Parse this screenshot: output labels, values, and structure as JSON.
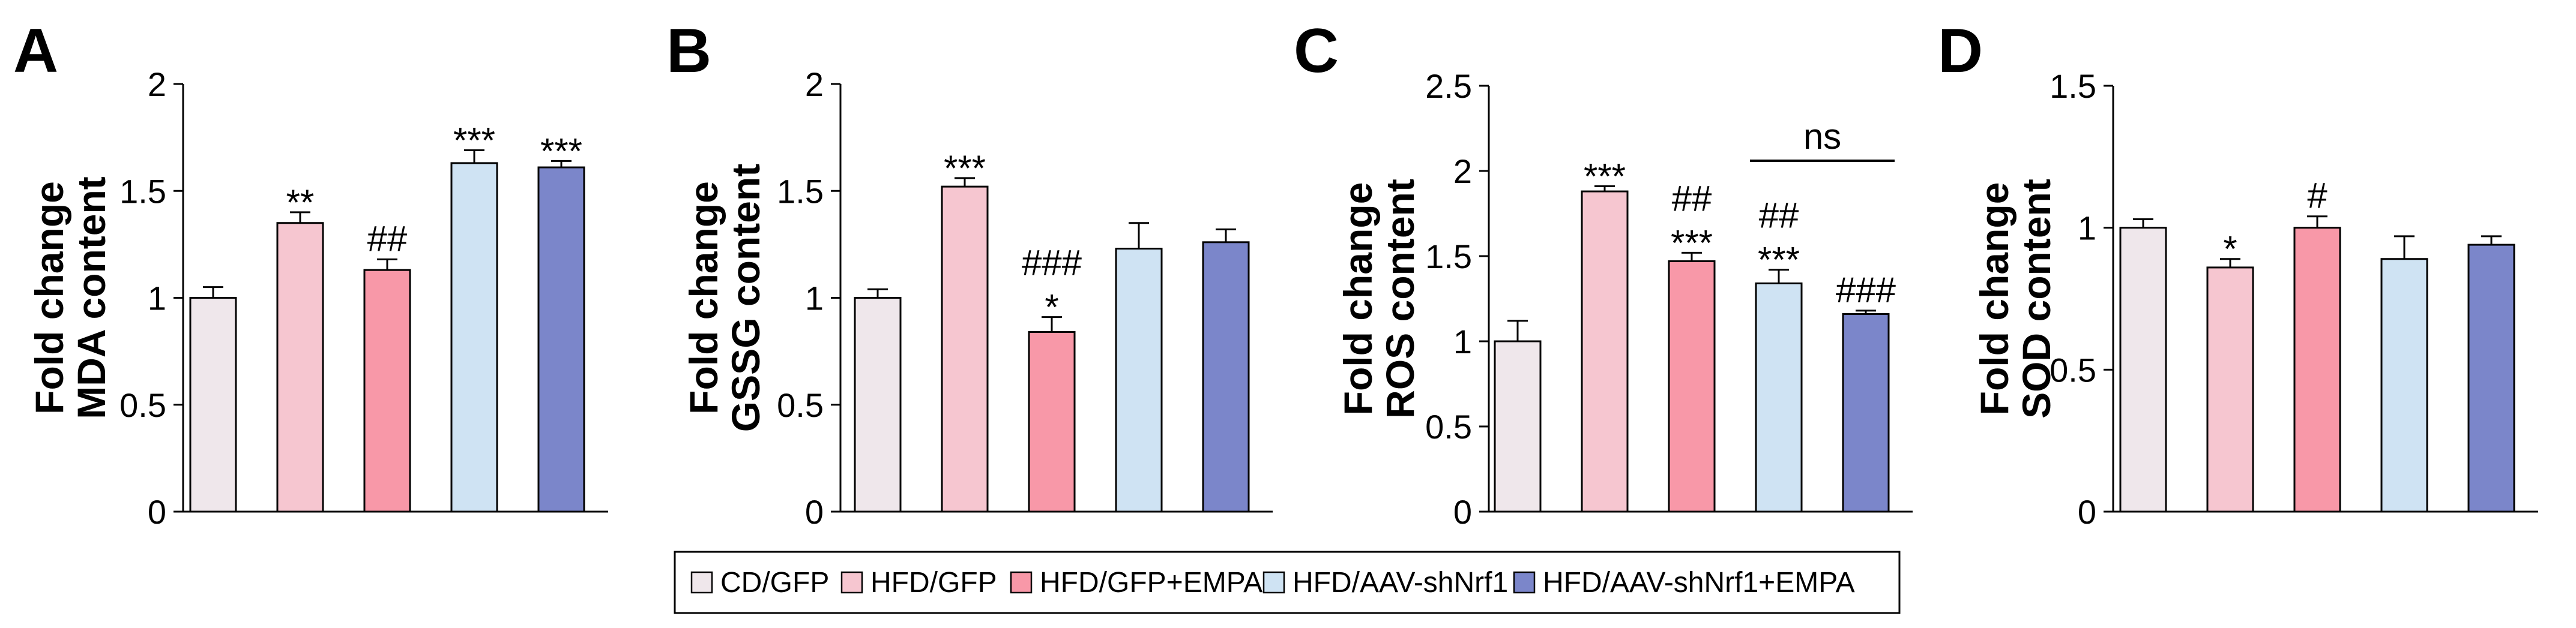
{
  "legend": [
    {
      "label": "CD/GFP",
      "color": "#efe7eb"
    },
    {
      "label": "HFD/GFP",
      "color": "#f6c6d0"
    },
    {
      "label": "HFD/GFP+EMPA",
      "color": "#f898a8"
    },
    {
      "label": "HFD/AAV-shNrf1",
      "color": "#cfe3f3"
    },
    {
      "label": "HFD/AAV-shNrf1+EMPA",
      "color": "#7b86ca"
    }
  ],
  "chart_data": [
    {
      "type": "bar",
      "panel": "A",
      "ylabel_line1": "Fold change",
      "ylabel_line2": "MDA content",
      "ylim": [
        0,
        2
      ],
      "yticks": [
        0,
        0.5,
        1,
        1.5,
        2
      ],
      "ytick_labels": [
        "0",
        "0.5",
        "1",
        "1.5",
        "2"
      ],
      "categories": [
        "CD/GFP",
        "HFD/GFP",
        "HFD/GFP+EMPA",
        "HFD/AAV-shNrf1",
        "HFD/AAV-shNrf1+EMPA"
      ],
      "values": [
        1.0,
        1.35,
        1.13,
        1.63,
        1.61
      ],
      "errors": [
        0.05,
        0.05,
        0.05,
        0.06,
        0.03
      ],
      "annotations": [
        [
          ""
        ],
        [
          "**"
        ],
        [
          "##"
        ],
        [
          "***"
        ],
        [
          "***"
        ]
      ]
    },
    {
      "type": "bar",
      "panel": "B",
      "ylabel_line1": "Fold change",
      "ylabel_line2": "GSSG content",
      "ylim": [
        0,
        2
      ],
      "yticks": [
        0,
        0.5,
        1,
        1.5,
        2
      ],
      "ytick_labels": [
        "0",
        "0.5",
        "1",
        "1.5",
        "2"
      ],
      "categories": [
        "CD/GFP",
        "HFD/GFP",
        "HFD/GFP+EMPA",
        "HFD/AAV-shNrf1",
        "HFD/AAV-shNrf1+EMPA"
      ],
      "values": [
        1.0,
        1.52,
        0.84,
        1.23,
        1.26
      ],
      "errors": [
        0.04,
        0.04,
        0.07,
        0.12,
        0.06
      ],
      "annotations": [
        [
          ""
        ],
        [
          "***"
        ],
        [
          "###",
          "*"
        ],
        [
          ""
        ],
        [
          ""
        ]
      ]
    },
    {
      "type": "bar",
      "panel": "C",
      "ylabel_line1": "Fold change",
      "ylabel_line2": "ROS content",
      "ylim": [
        0,
        2.5
      ],
      "yticks": [
        0,
        0.5,
        1,
        1.5,
        2,
        2.5
      ],
      "ytick_labels": [
        "0",
        "0.5",
        "1",
        "1.5",
        "2",
        "2.5"
      ],
      "categories": [
        "CD/GFP",
        "HFD/GFP",
        "HFD/GFP+EMPA",
        "HFD/AAV-shNrf1",
        "HFD/AAV-shNrf1+EMPA"
      ],
      "values": [
        1.0,
        1.88,
        1.47,
        1.34,
        1.16
      ],
      "errors": [
        0.12,
        0.03,
        0.05,
        0.08,
        0.02
      ],
      "annotations": [
        [
          ""
        ],
        [
          "***"
        ],
        [
          "##",
          "***"
        ],
        [
          "##",
          "***"
        ],
        [
          "###"
        ]
      ],
      "bracket": {
        "from": 3,
        "to": 4,
        "label": "ns"
      }
    },
    {
      "type": "bar",
      "panel": "D",
      "ylabel_line1": "Fold change",
      "ylabel_line2": "SOD content",
      "ylim": [
        0,
        1.5
      ],
      "yticks": [
        0,
        0.5,
        1,
        1.5
      ],
      "ytick_labels": [
        "0",
        "0.5",
        "1",
        "1.5"
      ],
      "categories": [
        "CD/GFP",
        "HFD/GFP",
        "HFD/GFP+EMPA",
        "HFD/AAV-shNrf1",
        "HFD/AAV-shNrf1+EMPA"
      ],
      "values": [
        1.0,
        0.86,
        1.0,
        0.89,
        0.94
      ],
      "errors": [
        0.03,
        0.03,
        0.04,
        0.08,
        0.03
      ],
      "annotations": [
        [
          ""
        ],
        [
          "*"
        ],
        [
          "#"
        ],
        [
          ""
        ],
        [
          ""
        ]
      ]
    }
  ]
}
